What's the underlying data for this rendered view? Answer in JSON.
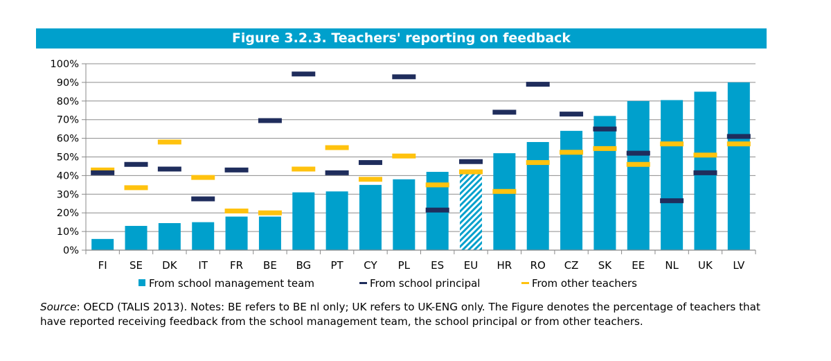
{
  "title": "Figure 3.2.3. Teachers' reporting on feedback",
  "colors": {
    "title_bg": "#00A0CC",
    "bar": "#00A0CC",
    "principal": "#1F2D5C",
    "teachers": "#FFC20E",
    "axis": "#888888",
    "grid": "#8C8C8C"
  },
  "chart_data": {
    "type": "bar",
    "title": "Figure 3.2.3. Teachers' reporting on feedback",
    "xlabel": "",
    "ylabel": "",
    "ylim": [
      0,
      100
    ],
    "y_ticks": [
      "0%",
      "10%",
      "20%",
      "30%",
      "40%",
      "50%",
      "60%",
      "70%",
      "80%",
      "90%",
      "100%"
    ],
    "categories": [
      "FI",
      "SE",
      "DK",
      "IT",
      "FR",
      "BE",
      "BG",
      "PT",
      "CY",
      "PL",
      "ES",
      "EU",
      "HR",
      "RO",
      "CZ",
      "SK",
      "EE",
      "NL",
      "UK",
      "LV"
    ],
    "hatched_category": "EU",
    "series": [
      {
        "name": "From school management team",
        "kind": "bar",
        "values": [
          6,
          13,
          14.5,
          15,
          18,
          18,
          31,
          31.5,
          35,
          38,
          42,
          43,
          52,
          58,
          64,
          72,
          80,
          80.5,
          85,
          90
        ]
      },
      {
        "name": "From school principal",
        "kind": "marker",
        "values": [
          41.5,
          46,
          43.5,
          27.5,
          43,
          69.5,
          94.5,
          41.5,
          47,
          93,
          21.5,
          47.5,
          74,
          89,
          73,
          65,
          52,
          26.5,
          41.5,
          61
        ]
      },
      {
        "name": "From other teachers",
        "kind": "marker",
        "values": [
          43,
          33.5,
          58,
          39,
          21,
          20,
          43.5,
          55,
          38,
          50.5,
          35,
          42,
          31.5,
          47,
          52.5,
          54.5,
          46,
          57,
          51,
          57
        ]
      }
    ],
    "legend": [
      "From school management team",
      "From school principal",
      "From other teachers"
    ],
    "legend_position": "bottom"
  },
  "source_note": {
    "label": "Source",
    "text": ": OECD (TALIS 2013). Notes: BE refers to BE nl only; UK refers to UK-ENG only. The Figure denotes the percentage of teachers that have reported receiving feedback from the school management team, the school principal or from other teachers."
  }
}
